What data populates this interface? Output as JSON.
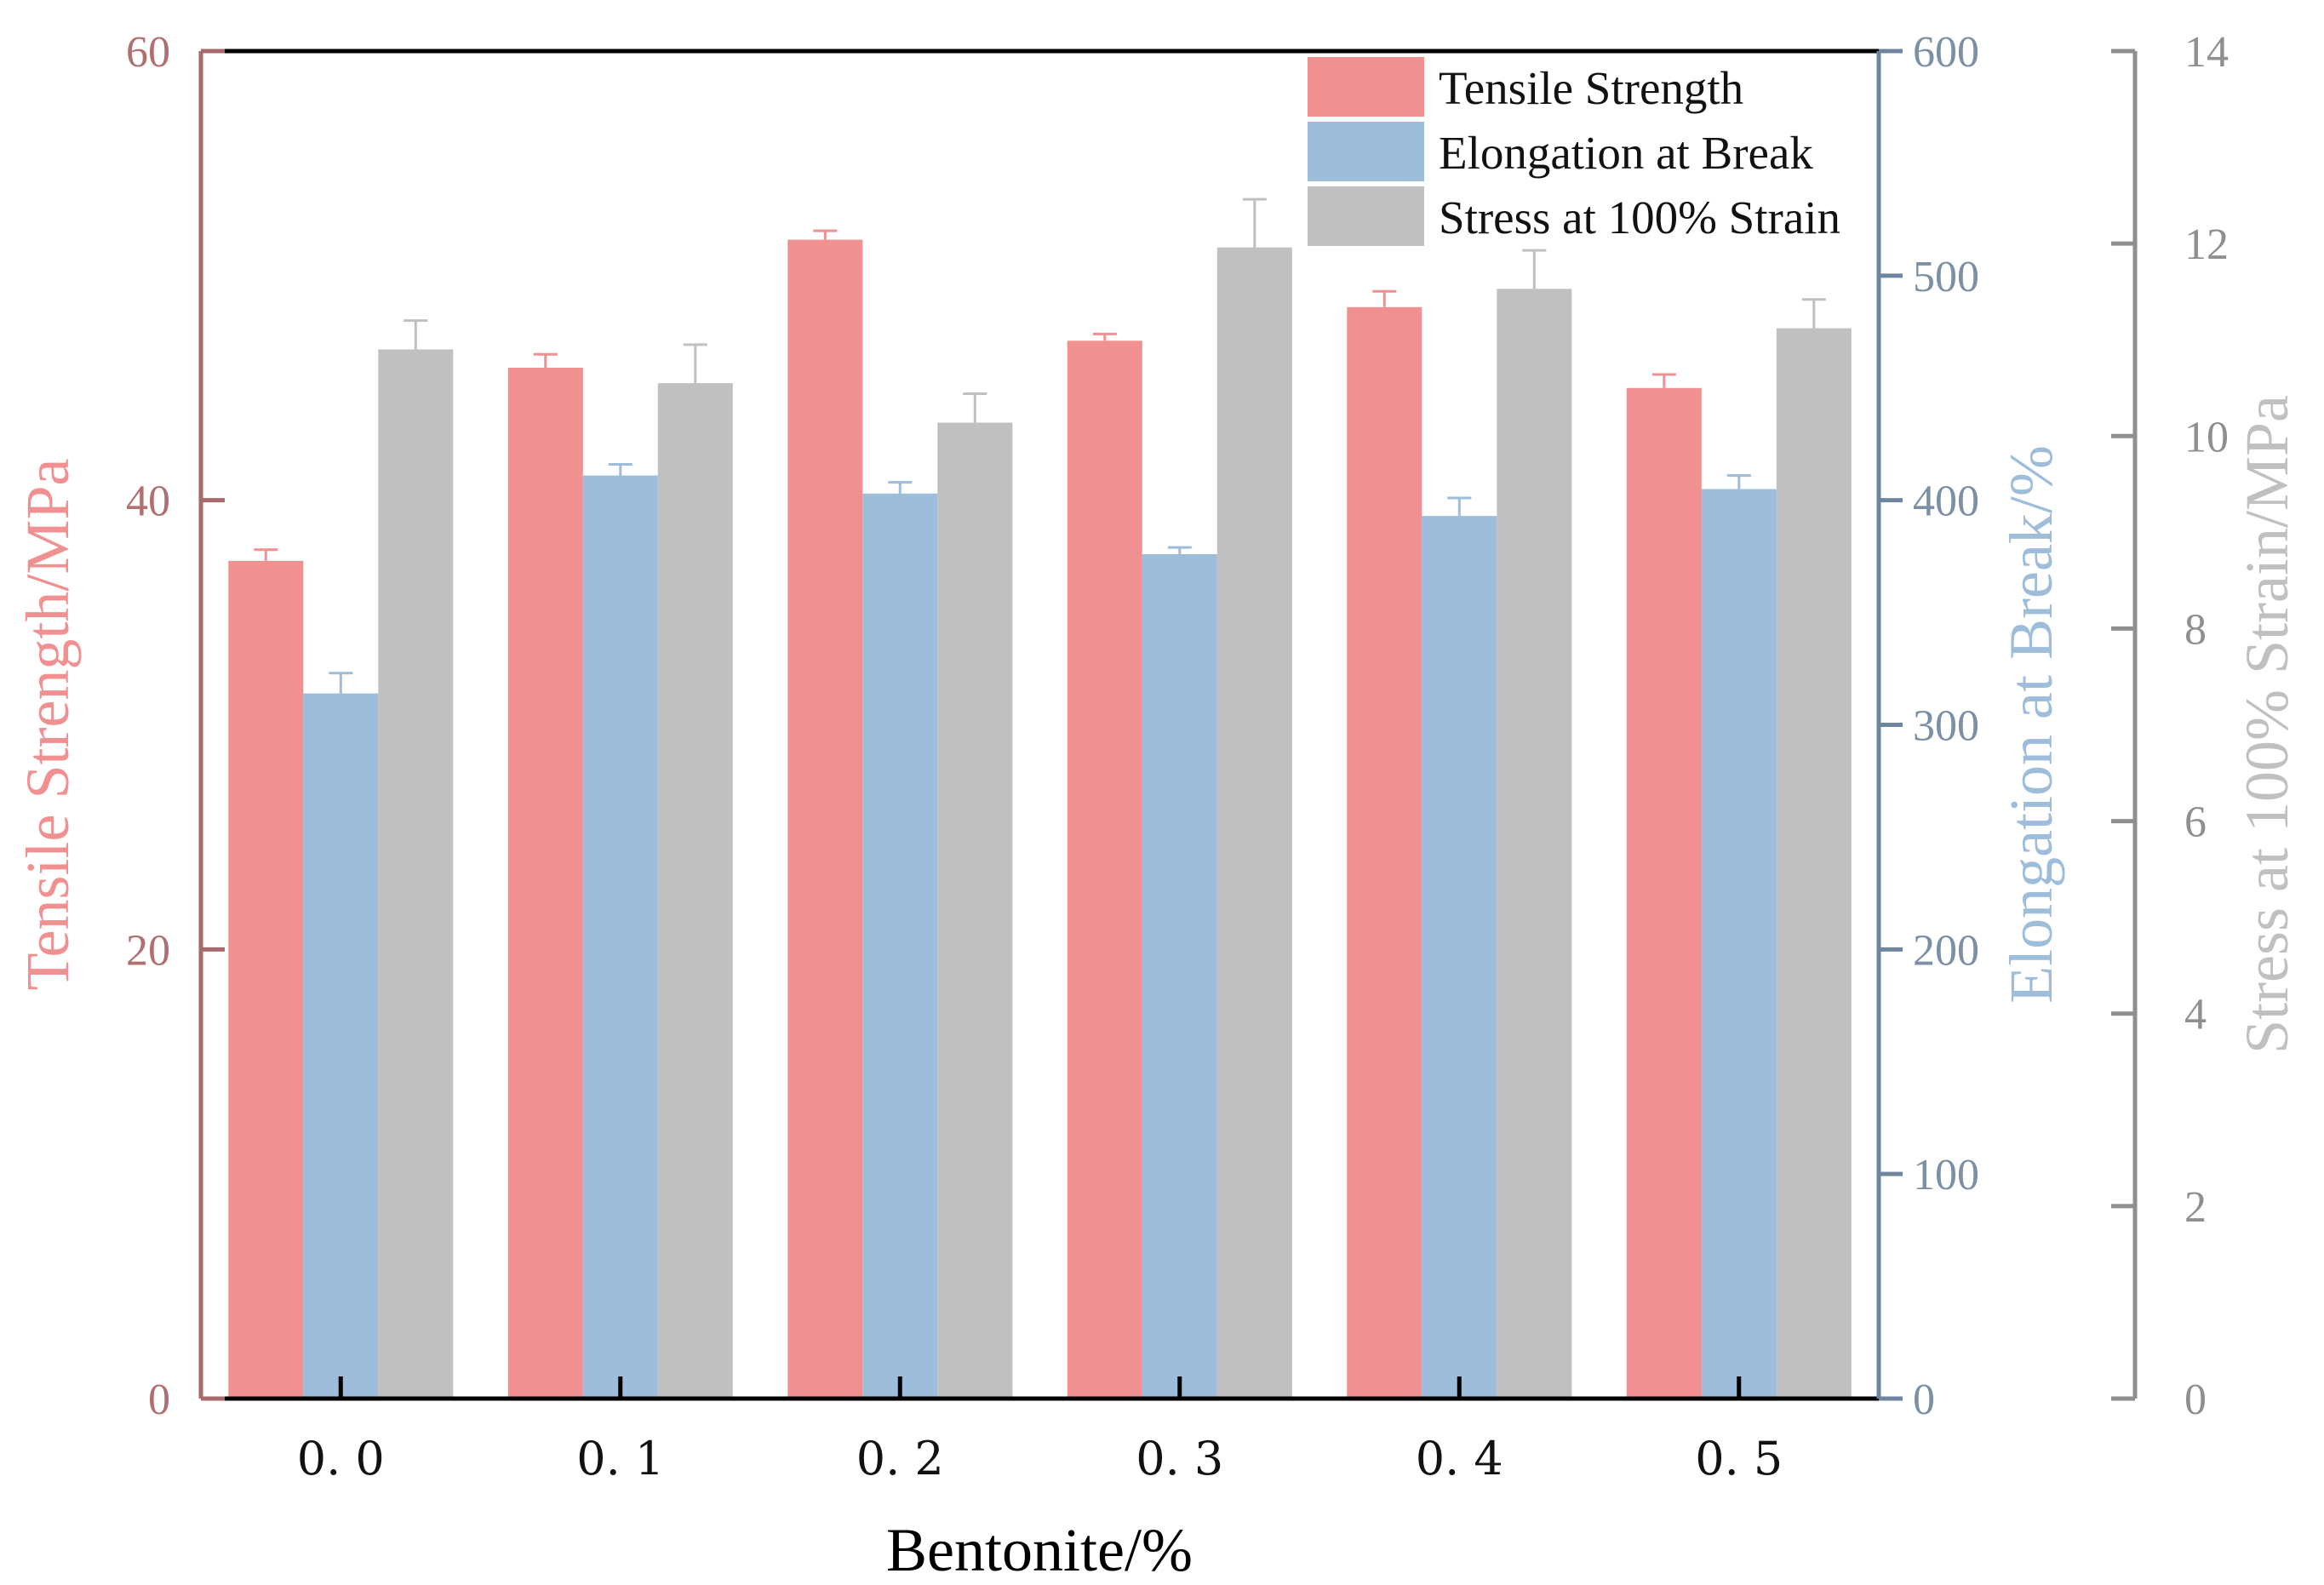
{
  "chart_data": {
    "type": "bar",
    "xlabel": "Bentonite/%",
    "categories": [
      "0. 0",
      "0. 1",
      "0. 2",
      "0. 3",
      "0. 4",
      "0. 5"
    ],
    "series": [
      {
        "name": "Tensile Strength",
        "axis": "left",
        "color": "#F09090",
        "values": [
          37.3,
          45.9,
          51.6,
          47.1,
          48.6,
          45.0
        ],
        "errors": [
          0.5,
          0.6,
          0.4,
          0.3,
          0.7,
          0.6
        ]
      },
      {
        "name": "Elongation at Break",
        "axis": "right1",
        "color": "#9DBDDA",
        "values": [
          314,
          411,
          403,
          376,
          393,
          405
        ],
        "errors": [
          9,
          5,
          5,
          3,
          8,
          6
        ]
      },
      {
        "name": "Stress at 100% Strain",
        "axis": "right2",
        "color": "#C0C0C0",
        "values": [
          10.9,
          10.55,
          10.14,
          11.96,
          11.53,
          11.12
        ],
        "errors": [
          0.3,
          0.4,
          0.3,
          0.5,
          0.4,
          0.3
        ]
      }
    ],
    "axes": {
      "left": {
        "label": "Tensile Strength/MPa",
        "range": [
          0,
          60
        ],
        "ticks": [
          "0",
          "20",
          "40",
          "60"
        ],
        "axis_color": "#A86A6A",
        "label_color": "#F09090",
        "tick_text_color": "#B07070"
      },
      "right1": {
        "label": "Elongation at Break/%",
        "range": [
          0,
          600
        ],
        "ticks": [
          "0",
          "100",
          "200",
          "300",
          "400",
          "500",
          "600"
        ],
        "axis_color": "#6E859E",
        "label_color": "#9DBDDA",
        "tick_text_color": "#7B8FA6"
      },
      "right2": {
        "label": "Stress at 100% Strain/MPa",
        "range": [
          0,
          14
        ],
        "ticks": [
          "0",
          "2",
          "4",
          "6",
          "8",
          "10",
          "12",
          "14"
        ],
        "axis_color": "#8F8F8F",
        "label_color": "#C0C0C0",
        "tick_text_color": "#8F8F8F"
      }
    },
    "legend": {
      "position": "top-right",
      "items": [
        "Tensile Strength",
        "Elongation at Break",
        "Stress at 100% Strain"
      ]
    }
  }
}
